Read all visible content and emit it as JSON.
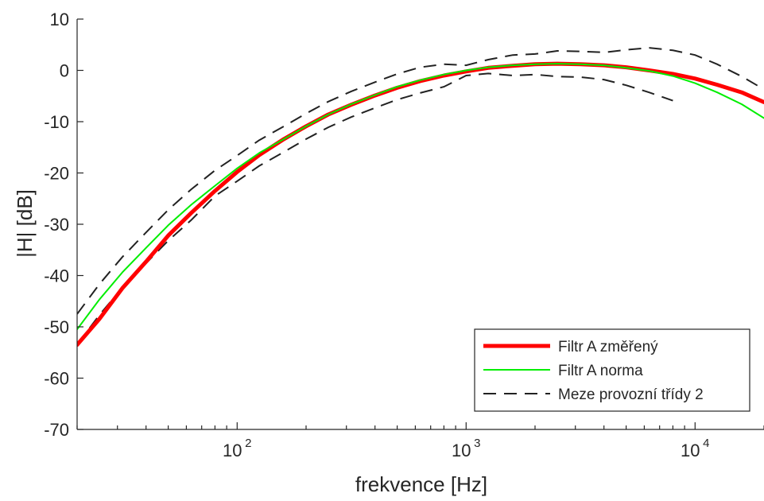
{
  "chart_data": {
    "type": "line",
    "xlabel": "frekvence [Hz]",
    "ylabel": "|H| [dB]",
    "x_scale": "log",
    "xlim": [
      20,
      20000
    ],
    "ylim": [
      -70,
      10
    ],
    "x_ticks": [
      {
        "value": 100,
        "base": "10",
        "exp": "2"
      },
      {
        "value": 1000,
        "base": "10",
        "exp": "3"
      },
      {
        "value": 10000,
        "base": "10",
        "exp": "4"
      }
    ],
    "y_ticks": [
      10,
      0,
      -10,
      -20,
      -30,
      -40,
      -50,
      -60,
      -70
    ],
    "grid": false,
    "legend_position": "bottom-right",
    "series": [
      {
        "name": "Filtr A změřený",
        "color": "#ff0000",
        "style": "solid-thick",
        "x": [
          20,
          25,
          31.5,
          40,
          50,
          63,
          80,
          100,
          125,
          160,
          200,
          250,
          315,
          400,
          500,
          630,
          800,
          1000,
          1250,
          1600,
          2000,
          2500,
          3150,
          4000,
          5000,
          6300,
          8000,
          10000,
          12500,
          16000,
          20000
        ],
        "y": [
          -53.5,
          -48.5,
          -42.5,
          -37.3,
          -32.2,
          -27.8,
          -23.5,
          -19.8,
          -16.5,
          -13.4,
          -10.9,
          -8.6,
          -6.7,
          -4.9,
          -3.4,
          -2.1,
          -1.0,
          -0.2,
          0.5,
          0.9,
          1.2,
          1.3,
          1.2,
          1.0,
          0.6,
          0.0,
          -0.7,
          -1.6,
          -2.8,
          -4.3,
          -6.2
        ]
      },
      {
        "name": "Filtr A norma",
        "color": "#00ee00",
        "style": "solid-thin",
        "x": [
          20,
          25,
          31.5,
          40,
          50,
          63,
          80,
          100,
          125,
          160,
          200,
          250,
          315,
          400,
          500,
          630,
          800,
          1000,
          1250,
          1600,
          2000,
          2500,
          3150,
          4000,
          5000,
          6300,
          8000,
          10000,
          12500,
          16000,
          20000
        ],
        "y": [
          -50.5,
          -44.7,
          -39.4,
          -34.6,
          -30.2,
          -26.2,
          -22.5,
          -19.1,
          -16.1,
          -13.4,
          -10.9,
          -8.6,
          -6.6,
          -4.8,
          -3.2,
          -1.9,
          -0.8,
          0.0,
          0.6,
          1.0,
          1.2,
          1.3,
          1.2,
          1.0,
          0.5,
          -0.1,
          -1.1,
          -2.5,
          -4.3,
          -6.6,
          -9.3
        ]
      },
      {
        "name": "Meze provozní třídy 2",
        "color": "#222222",
        "style": "dashed",
        "segments": [
          {
            "x": [
              20,
              25,
              31.5,
              40,
              50,
              63,
              80,
              100,
              125,
              160,
              200,
              250,
              315,
              400,
              500,
              630,
              800,
              1000,
              1250,
              1600,
              2000,
              2500,
              3150,
              4000,
              5000,
              6300,
              8000,
              10000,
              12500,
              16000,
              20000
            ],
            "y": [
              -47.5,
              -41.7,
              -36.4,
              -31.6,
              -27.2,
              -23.2,
              -19.5,
              -16.6,
              -13.6,
              -10.9,
              -8.4,
              -6.1,
              -4.1,
              -2.3,
              -0.7,
              0.6,
              1.2,
              1.0,
              2.1,
              3.0,
              3.2,
              3.8,
              3.7,
              3.5,
              4.0,
              4.4,
              3.9,
              3.0,
              1.2,
              -1.2,
              -3.7
            ]
          },
          {
            "x": [
              20,
              25,
              31.5,
              40,
              50,
              63,
              80,
              100,
              125,
              160,
              200,
              250,
              315,
              400,
              500,
              630,
              800,
              1000,
              1250,
              1600,
              2000,
              2500,
              3150,
              4000,
              5000,
              6300,
              8000
            ],
            "y": [
              -53.5,
              -47.7,
              -42.4,
              -37.6,
              -33.2,
              -29.2,
              -24.5,
              -21.6,
              -18.6,
              -15.9,
              -13.4,
              -11.1,
              -9.1,
              -7.3,
              -5.7,
              -4.4,
              -3.2,
              -1.0,
              -0.6,
              -1.0,
              -0.8,
              -1.2,
              -1.3,
              -1.8,
              -2.9,
              -4.3,
              -5.9
            ]
          }
        ]
      }
    ]
  }
}
